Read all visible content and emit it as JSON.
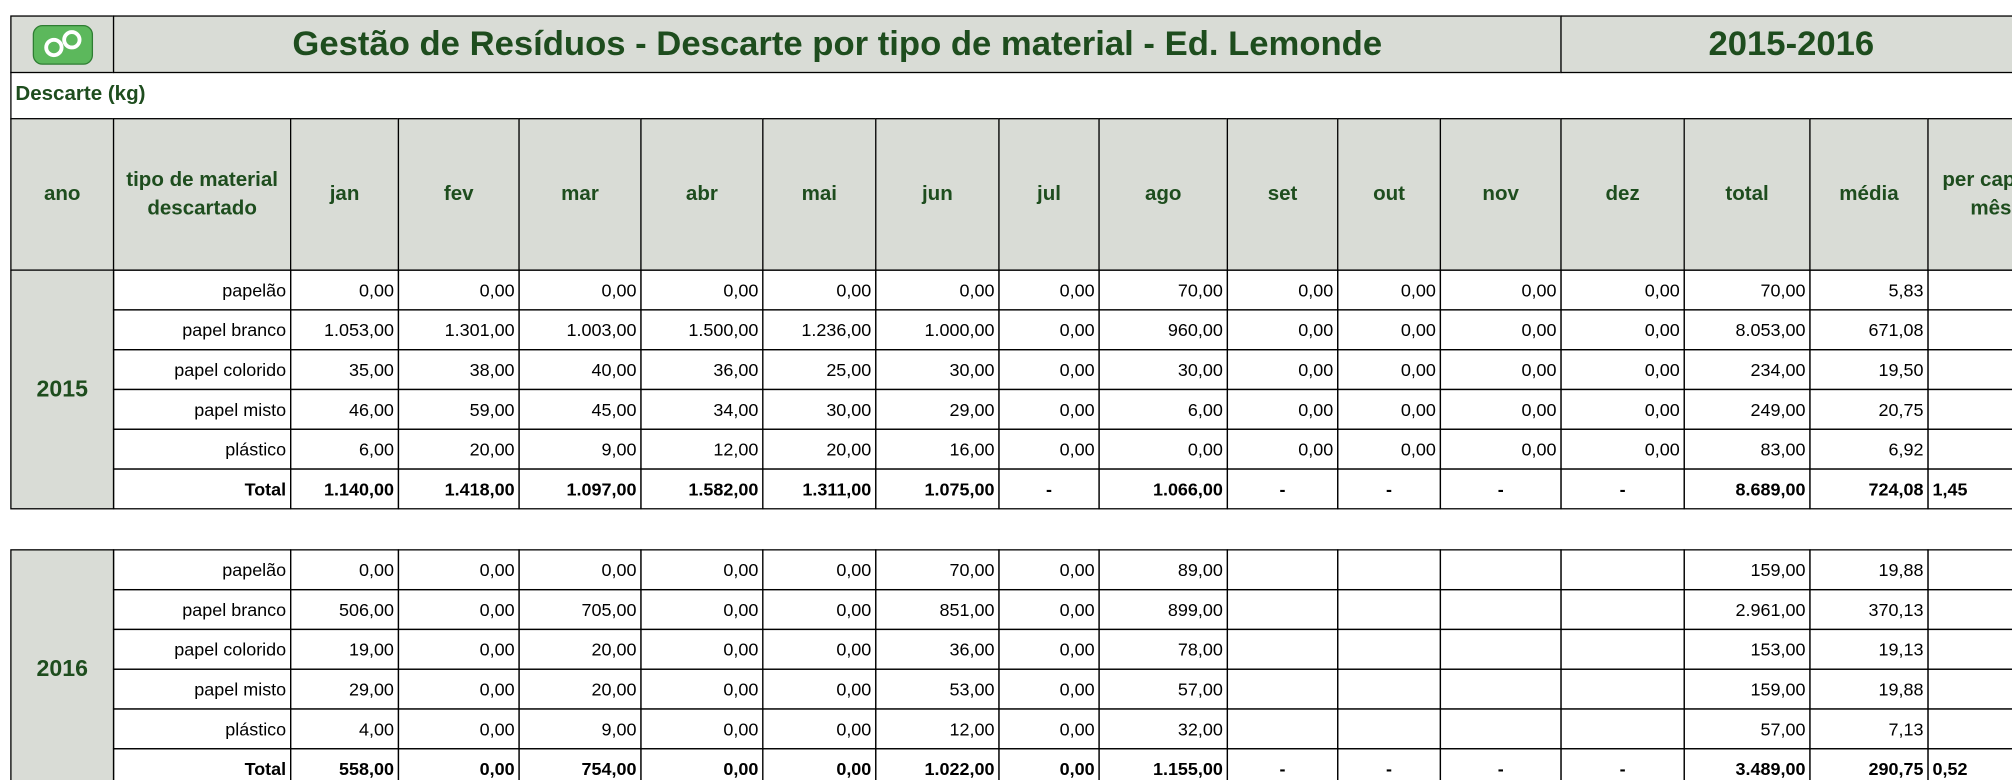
{
  "header": {
    "title": "Gestão de Resíduos - Descarte por tipo de material - Ed. Lemonde",
    "period": "2015-2016"
  },
  "section_label": "Descarte (kg)",
  "table": {
    "columns": [
      "ano",
      "tipo de material descartado",
      "jan",
      "fev",
      "mar",
      "abr",
      "mai",
      "jun",
      "jul",
      "ago",
      "set",
      "out",
      "nov",
      "dez",
      "total",
      "média",
      "per capta/ mês"
    ],
    "blocks": [
      {
        "year": "2015",
        "rows": [
          {
            "label": "papelão",
            "months": [
              "0,00",
              "0,00",
              "0,00",
              "0,00",
              "0,00",
              "0,00",
              "0,00",
              "70,00",
              "0,00",
              "0,00",
              "0,00",
              "0,00"
            ],
            "total": "70,00",
            "media": "5,83"
          },
          {
            "label": "papel branco",
            "months": [
              "1.053,00",
              "1.301,00",
              "1.003,00",
              "1.500,00",
              "1.236,00",
              "1.000,00",
              "0,00",
              "960,00",
              "0,00",
              "0,00",
              "0,00",
              "0,00"
            ],
            "total": "8.053,00",
            "media": "671,08"
          },
          {
            "label": "papel colorido",
            "months": [
              "35,00",
              "38,00",
              "40,00",
              "36,00",
              "25,00",
              "30,00",
              "0,00",
              "30,00",
              "0,00",
              "0,00",
              "0,00",
              "0,00"
            ],
            "total": "234,00",
            "media": "19,50"
          },
          {
            "label": "papel misto",
            "months": [
              "46,00",
              "59,00",
              "45,00",
              "34,00",
              "30,00",
              "29,00",
              "0,00",
              "6,00",
              "0,00",
              "0,00",
              "0,00",
              "0,00"
            ],
            "total": "249,00",
            "media": "20,75"
          },
          {
            "label": "plástico",
            "months": [
              "6,00",
              "20,00",
              "9,00",
              "12,00",
              "20,00",
              "16,00",
              "0,00",
              "0,00",
              "0,00",
              "0,00",
              "0,00",
              "0,00"
            ],
            "total": "83,00",
            "media": "6,92"
          },
          {
            "label": "Total",
            "months": [
              "1.140,00",
              "1.418,00",
              "1.097,00",
              "1.582,00",
              "1.311,00",
              "1.075,00",
              "-",
              "1.066,00",
              "-",
              "-",
              "-",
              "-"
            ],
            "total": "8.689,00",
            "media": "724,08",
            "per_capita": "1,45"
          }
        ]
      },
      {
        "year": "2016",
        "rows": [
          {
            "label": "papelão",
            "months": [
              "0,00",
              "0,00",
              "0,00",
              "0,00",
              "0,00",
              "70,00",
              "0,00",
              "89,00"
            ],
            "total": "159,00",
            "media": "19,88"
          },
          {
            "label": "papel branco",
            "months": [
              "506,00",
              "0,00",
              "705,00",
              "0,00",
              "0,00",
              "851,00",
              "0,00",
              "899,00"
            ],
            "total": "2.961,00",
            "media": "370,13"
          },
          {
            "label": "papel colorido",
            "months": [
              "19,00",
              "0,00",
              "20,00",
              "0,00",
              "0,00",
              "36,00",
              "0,00",
              "78,00"
            ],
            "total": "153,00",
            "media": "19,13"
          },
          {
            "label": "papel misto",
            "months": [
              "29,00",
              "0,00",
              "20,00",
              "0,00",
              "0,00",
              "53,00",
              "0,00",
              "57,00"
            ],
            "total": "159,00",
            "media": "19,88"
          },
          {
            "label": "plástico",
            "months": [
              "4,00",
              "0,00",
              "9,00",
              "0,00",
              "0,00",
              "12,00",
              "0,00",
              "32,00"
            ],
            "total": "57,00",
            "media": "7,13"
          },
          {
            "label": "Total",
            "months": [
              "558,00",
              "0,00",
              "754,00",
              "0,00",
              "0,00",
              "1.022,00",
              "0,00",
              "1.155,00",
              "-",
              "-",
              "-",
              "-"
            ],
            "total": "3.489,00",
            "media": "290,75",
            "per_capita": "0,52"
          }
        ]
      }
    ]
  }
}
